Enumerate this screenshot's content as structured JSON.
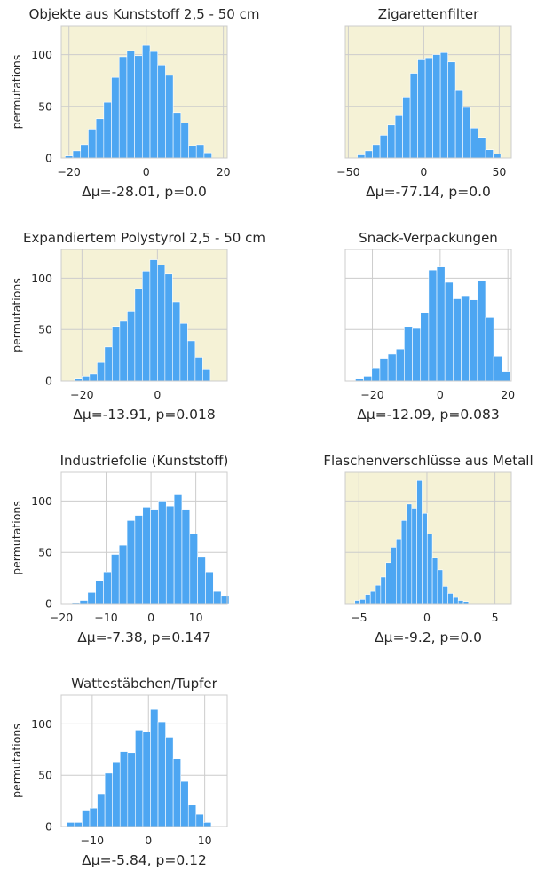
{
  "panel_bg_color": "#f5f2d6",
  "bar_color": "#4da6f2",
  "grid_color": "#cccccc",
  "chart_data": [
    {
      "type": "bar",
      "title": "Objekte aus Kunststoff 2,5 - 50 cm",
      "xlabel": "Δμ=-28.01, p=0.0",
      "ylabel": "permutations",
      "xlim": [
        -22,
        21
      ],
      "ylim": [
        0,
        128
      ],
      "xticks": [
        -20,
        0,
        20
      ],
      "yticks": [
        0,
        50,
        100
      ],
      "highlight": true,
      "bin_start": -21,
      "bin_width": 2,
      "counts": [
        2,
        7,
        13,
        28,
        38,
        54,
        78,
        98,
        104,
        99,
        109,
        103,
        90,
        80,
        44,
        34,
        12,
        13,
        5
      ]
    },
    {
      "type": "bar",
      "title": "Zigarettenfilter",
      "xlabel": "Δμ=-77.14, p=0.0",
      "ylabel": "",
      "xlim": [
        -52,
        58
      ],
      "ylim": [
        0,
        128
      ],
      "xticks": [
        -50,
        0,
        50
      ],
      "yticks": [
        0,
        50,
        100
      ],
      "highlight": true,
      "bin_start": -44,
      "bin_width": 5,
      "counts": [
        3,
        7,
        13,
        22,
        32,
        41,
        59,
        82,
        95,
        97,
        100,
        102,
        93,
        66,
        49,
        29,
        20,
        8,
        4
      ]
    },
    {
      "type": "bar",
      "title": "Expandiertem Polystyrol 2,5 - 50 cm",
      "xlabel": "Δμ=-13.91, p=0.018",
      "ylabel": "permutations",
      "xlim": [
        -25.5,
        18.5
      ],
      "ylim": [
        0,
        128
      ],
      "xticks": [
        -20,
        0
      ],
      "yticks": [
        0,
        50,
        100
      ],
      "highlight": true,
      "bin_start": -22,
      "bin_width": 2,
      "counts": [
        2,
        4,
        7,
        18,
        33,
        53,
        58,
        68,
        90,
        107,
        118,
        113,
        104,
        77,
        56,
        39,
        23,
        11
      ]
    },
    {
      "type": "bar",
      "title": "Snack-Verpackungen",
      "xlabel": "Δμ=-12.09, p=0.083",
      "ylabel": "",
      "xlim": [
        -28,
        21
      ],
      "ylim": [
        0,
        128
      ],
      "xticks": [
        -20,
        0,
        20
      ],
      "yticks": [
        0,
        50,
        100
      ],
      "highlight": false,
      "bin_start": -25,
      "bin_width": 2.4,
      "counts": [
        2,
        4,
        12,
        22,
        26,
        31,
        53,
        51,
        66,
        108,
        111,
        96,
        80,
        83,
        79,
        98,
        62,
        24,
        9
      ]
    },
    {
      "type": "bar",
      "title": "Industriefolie (Kunststoff)",
      "xlabel": "Δμ=-7.38, p=0.147",
      "ylabel": "permutations",
      "xlim": [
        -20,
        17
      ],
      "ylim": [
        0,
        128
      ],
      "xticks": [
        -20,
        -10,
        0,
        10
      ],
      "yticks": [
        0,
        50,
        100
      ],
      "highlight": false,
      "bin_start": -17.6,
      "bin_width": 1.75,
      "counts": [
        1,
        3,
        11,
        22,
        31,
        48,
        57,
        81,
        86,
        94,
        92,
        100,
        95,
        106,
        92,
        68,
        46,
        31,
        12,
        8
      ]
    },
    {
      "type": "bar",
      "title": "Flaschenverschlüsse aus Metall",
      "xlabel": "Δμ=-9.2, p=0.0",
      "ylabel": "",
      "xlim": [
        -6,
        6.2
      ],
      "ylim": [
        0,
        128
      ],
      "xticks": [
        -5,
        0,
        5
      ],
      "yticks": [
        0,
        50,
        100
      ],
      "highlight": true,
      "bin_start": -5.3,
      "bin_width": 0.38,
      "counts": [
        3,
        4,
        9,
        12,
        18,
        26,
        40,
        55,
        63,
        81,
        97,
        93,
        120,
        88,
        68,
        45,
        33,
        17,
        10,
        6,
        3,
        2
      ]
    },
    {
      "type": "bar",
      "title": "Wattestäbchen/Tupfer",
      "xlabel": "Δμ=-5.84, p=0.12",
      "ylabel": "permutations",
      "xlim": [
        -15.5,
        14
      ],
      "ylim": [
        0,
        128
      ],
      "xticks": [
        -10,
        0,
        10
      ],
      "yticks": [
        0,
        50,
        100
      ],
      "highlight": false,
      "bin_start": -14.5,
      "bin_width": 1.35,
      "counts": [
        4,
        4,
        16,
        18,
        32,
        52,
        63,
        73,
        72,
        94,
        92,
        114,
        102,
        87,
        66,
        44,
        21,
        12,
        4
      ]
    }
  ]
}
